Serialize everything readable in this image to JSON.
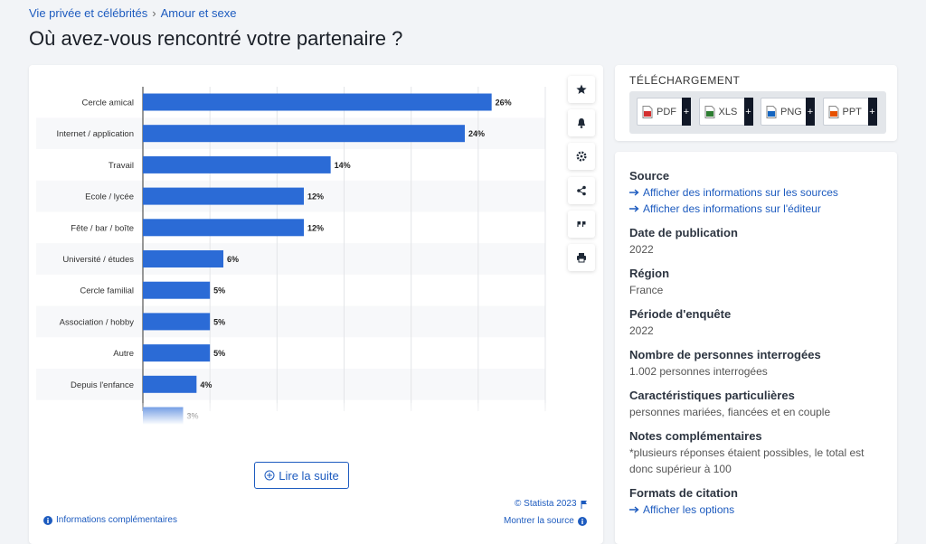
{
  "breadcrumb": [
    "Vie privée et célébrités",
    "Amour et sexe"
  ],
  "title": "Où avez-vous rencontré votre partenaire ?",
  "chart_data": {
    "type": "bar",
    "orientation": "horizontal",
    "categories": [
      "Cercle amical",
      "Internet / application",
      "Travail",
      "Ecole / lycée",
      "Fête / bar / boîte",
      "Université / études",
      "Cercle familial",
      "Association / hobby",
      "Autre",
      "Depuis l'enfance",
      null
    ],
    "values": [
      26,
      24,
      14,
      12,
      12,
      6,
      5,
      5,
      5,
      4,
      3
    ],
    "value_labels": [
      "26%",
      "24%",
      "14%",
      "12%",
      "12%",
      "6%",
      "5%",
      "5%",
      "5%",
      "4%",
      "3%"
    ],
    "color": "#2b6bd6",
    "xlim": [
      0,
      30
    ],
    "xticks": [
      0,
      5,
      10,
      15,
      20,
      25,
      30
    ],
    "grid": true
  },
  "read_more": "Lire la suite",
  "copyright": "© Statista 2023",
  "show_source": "Montrer la source",
  "more_info": "Informations complémentaires",
  "download": {
    "title": "TÉLÉCHARGEMENT",
    "formats": [
      "PDF",
      "XLS",
      "PNG",
      "PPT"
    ],
    "add": "+"
  },
  "details": [
    {
      "heading": "Source",
      "links": [
        "Afficher des informations sur les sources",
        "Afficher des informations sur l'éditeur"
      ]
    },
    {
      "heading": "Date de publication",
      "text": "2022"
    },
    {
      "heading": "Région",
      "text": "France"
    },
    {
      "heading": "Période d'enquête",
      "text": "2022"
    },
    {
      "heading": "Nombre de personnes interrogées",
      "text": "1.002 personnes interrogées"
    },
    {
      "heading": "Caractéristiques particulières",
      "text": "personnes mariées, fiancées et en couple"
    },
    {
      "heading": "Notes complémentaires",
      "text": "*plusieurs réponses étaient possibles, le total est donc supérieur à 100"
    },
    {
      "heading": "Formats de citation",
      "links": [
        "Afficher les options"
      ]
    }
  ]
}
